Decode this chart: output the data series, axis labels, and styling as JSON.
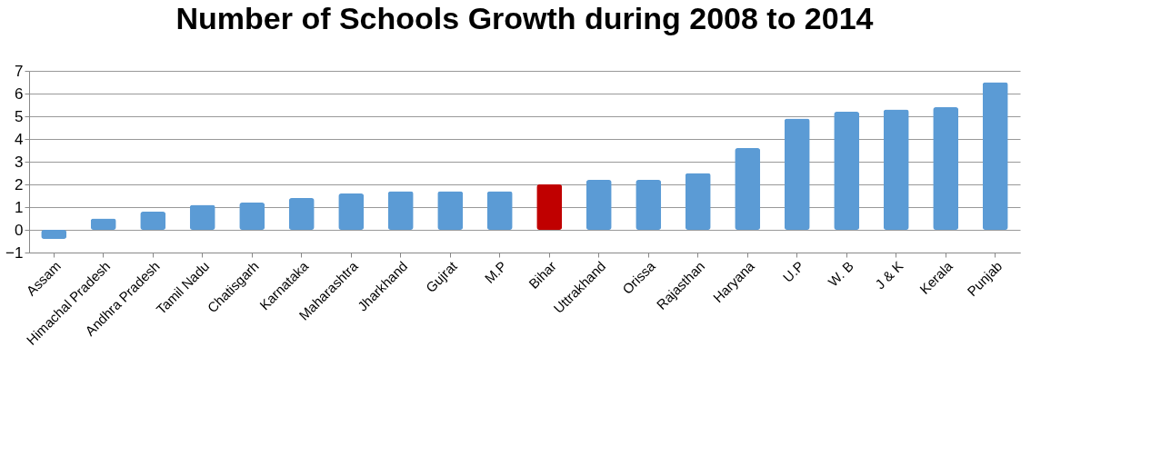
{
  "chart_data": {
    "type": "bar",
    "title": "Number of Schools Growth during 2008 to 2014",
    "categories": [
      "Assam",
      "Himachal Pradesh",
      "Andhra Pradesh",
      "Tamil Nadu",
      "Chatisgarh",
      "Karnataka",
      "Maharashtra",
      "Jharkhand",
      "Gujrat",
      "M.P",
      "Bihar",
      "Uttrakhand",
      "Orissa",
      "Rajasthan",
      "Haryana",
      "U.P",
      "W. B",
      "J & K",
      "Kerala",
      "Punjab"
    ],
    "values": [
      -0.4,
      0.5,
      0.8,
      1.1,
      1.2,
      1.4,
      1.6,
      1.7,
      1.7,
      1.7,
      2.0,
      2.2,
      2.2,
      2.5,
      3.6,
      4.9,
      5.2,
      5.3,
      5.4,
      6.5
    ],
    "colors": [
      "#5b9bd5",
      "#5b9bd5",
      "#5b9bd5",
      "#5b9bd5",
      "#5b9bd5",
      "#5b9bd5",
      "#5b9bd5",
      "#5b9bd5",
      "#5b9bd5",
      "#5b9bd5",
      "#c00000",
      "#5b9bd5",
      "#5b9bd5",
      "#5b9bd5",
      "#5b9bd5",
      "#5b9bd5",
      "#5b9bd5",
      "#5b9bd5",
      "#5b9bd5",
      "#5b9bd5"
    ],
    "ylim": [
      -1,
      7
    ],
    "yticks": [
      -1,
      0,
      1,
      2,
      3,
      4,
      5,
      6,
      7
    ],
    "grid": "y"
  }
}
